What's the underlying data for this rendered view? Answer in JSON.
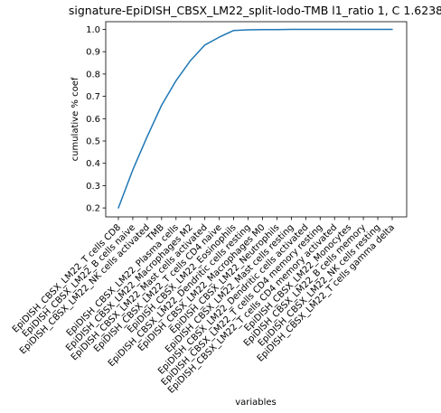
{
  "chart_data": {
    "type": "line",
    "title": "signature-EpiDISH_CBSX_LM22_split-lodo-TMB l1_ratio 1, C 1.6238",
    "xlabel": "variables",
    "ylabel": "cumulative % coef",
    "ylim": [
      0.2,
      1.0
    ],
    "yticks": [
      "0.2",
      "0.3",
      "0.4",
      "0.5",
      "0.6",
      "0.7",
      "0.8",
      "0.9",
      "1.0"
    ],
    "grid": false,
    "series_color": "#1f77b4",
    "categories": [
      "EpiDISH_CBSX_LM22_T cells CD8",
      "EpiDISH_CBSX_LM22_B cells naive",
      "EpiDISH_CBSX_LM22_NK cells activated",
      "TMB",
      "EpiDISH_CBSX_LM22_Plasma cells",
      "EpiDISH_CBSX_LM22_Macrophages M2",
      "EpiDISH_CBSX_LM22_Mast cells activated",
      "EpiDISH_CBSX_LM22_T cells CD4 naive",
      "EpiDISH_CBSX_LM22_Eosinophils",
      "EpiDISH_CBSX_LM22_Dendritic cells resting",
      "EpiDISH_CBSX_LM22_Macrophages M0",
      "EpiDISH_CBSX_LM22_Neutrophils",
      "EpiDISH_CBSX_LM22_Mast cells resting",
      "EpiDISH_CBSX_LM22_Dendritic cells activated",
      "EpiDISH_CBSX_LM22_T cells CD4 memory resting",
      "EpiDISH_CBSX_LM22_T cells CD4 memory activated",
      "EpiDISH_CBSX_LM22_Monocytes",
      "EpiDISH_CBSX_LM22_B cells memory",
      "EpiDISH_CBSX_LM22_NK cells resting",
      "EpiDISH_CBSX_LM22_T cells gamma delta"
    ],
    "values": [
      0.2,
      0.37,
      0.52,
      0.66,
      0.77,
      0.86,
      0.93,
      0.965,
      0.995,
      0.998,
      0.999,
      0.999,
      1.0,
      1.0,
      1.0,
      1.0,
      1.0,
      1.0,
      1.0,
      1.0
    ]
  }
}
